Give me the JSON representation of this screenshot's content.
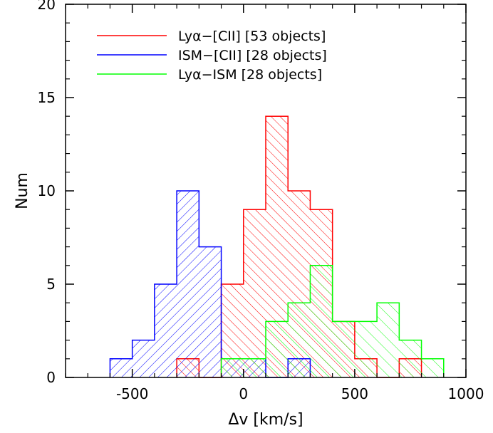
{
  "chart_data": {
    "type": "bar",
    "subtype": "histogram",
    "title": "",
    "xlabel": "Δv [km/s]",
    "ylabel": "Num",
    "xlim": [
      -800,
      1000
    ],
    "ylim": [
      0,
      20
    ],
    "x_ticks": [
      -500,
      0,
      500,
      1000
    ],
    "y_ticks": [
      0,
      5,
      10,
      15,
      20
    ],
    "bin_width": 100,
    "grid": false,
    "legend_placement": "top-left",
    "series": [
      {
        "name": "Lyα−[CII] [53 objects]",
        "color": "#ff0000",
        "hatch": "down-right",
        "bins": [
          {
            "start": -300,
            "count": 1
          },
          {
            "start": -200,
            "count": 0
          },
          {
            "start": -100,
            "count": 5
          },
          {
            "start": 0,
            "count": 9
          },
          {
            "start": 100,
            "count": 14
          },
          {
            "start": 200,
            "count": 10
          },
          {
            "start": 300,
            "count": 9
          },
          {
            "start": 400,
            "count": 3
          },
          {
            "start": 500,
            "count": 1
          },
          {
            "start": 600,
            "count": 0
          },
          {
            "start": 700,
            "count": 1
          }
        ]
      },
      {
        "name": "ISM−[CII] [28 objects]",
        "color": "#0000ff",
        "hatch": "up-right",
        "bins": [
          {
            "start": -600,
            "count": 1
          },
          {
            "start": -500,
            "count": 2
          },
          {
            "start": -400,
            "count": 5
          },
          {
            "start": -300,
            "count": 10
          },
          {
            "start": -200,
            "count": 7
          },
          {
            "start": -100,
            "count": 1
          },
          {
            "start": 0,
            "count": 1
          },
          {
            "start": 100,
            "count": 0
          },
          {
            "start": 200,
            "count": 1
          }
        ]
      },
      {
        "name": "Lyα−ISM [28 objects]",
        "color": "#00ff00",
        "hatch": "down-right-sparse",
        "bins": [
          {
            "start": -100,
            "count": 1
          },
          {
            "start": 0,
            "count": 1
          },
          {
            "start": 100,
            "count": 3
          },
          {
            "start": 200,
            "count": 4
          },
          {
            "start": 300,
            "count": 6
          },
          {
            "start": 400,
            "count": 3
          },
          {
            "start": 500,
            "count": 3
          },
          {
            "start": 600,
            "count": 4
          },
          {
            "start": 700,
            "count": 2
          },
          {
            "start": 800,
            "count": 1
          }
        ]
      }
    ]
  }
}
